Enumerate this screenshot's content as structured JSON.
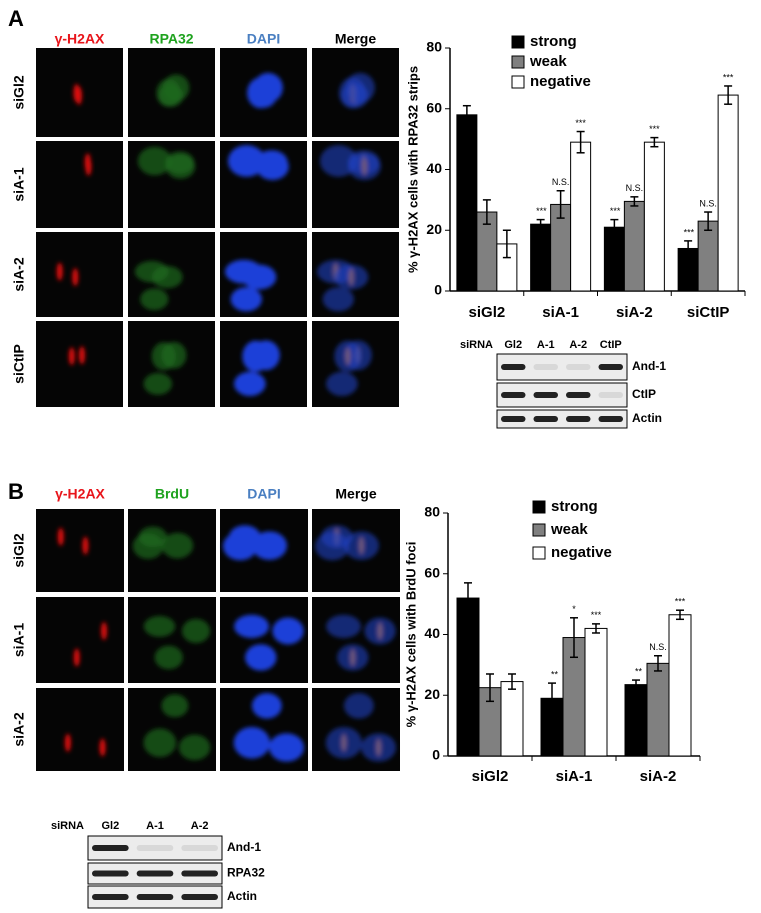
{
  "panels": [
    {
      "label": "A",
      "image_columns": [
        "γ-H2AX",
        "RPA32",
        "DAPI",
        "Merge"
      ],
      "image_rows": [
        "siGl2",
        "siA-1",
        "siA-2",
        "siCtIP"
      ],
      "blot": {
        "header": [
          "siRNA",
          "Gl2",
          "A-1",
          "A-2",
          "CtIP"
        ],
        "bands": [
          "And-1",
          "CtIP",
          "Actin"
        ]
      }
    },
    {
      "label": "B",
      "image_columns": [
        "γ-H2AX",
        "BrdU",
        "DAPI",
        "Merge"
      ],
      "image_rows": [
        "siGl2",
        "siA-1",
        "siA-2"
      ],
      "blot": {
        "header": [
          "siRNA",
          "Gl2",
          "A-1",
          "A-2"
        ],
        "bands": [
          "And-1",
          "RPA32",
          "Actin"
        ]
      }
    }
  ],
  "chart_data": [
    {
      "type": "bar",
      "y_label": "% γ-H2AX cells with RPA32 strips",
      "categories": [
        "siGl2",
        "siA-1",
        "siA-2",
        "siCtIP"
      ],
      "series": [
        {
          "name": "strong",
          "color": "#000000",
          "values": [
            58,
            22,
            21,
            14
          ],
          "errors": [
            3,
            1.5,
            2.5,
            2.5
          ],
          "annotations": [
            null,
            "***",
            "***",
            "***"
          ]
        },
        {
          "name": "weak",
          "color": "#808080",
          "values": [
            26,
            28.5,
            29.5,
            23
          ],
          "errors": [
            4,
            4.5,
            1.5,
            3
          ],
          "annotations": [
            null,
            "N.S.",
            "N.S.",
            "N.S."
          ]
        },
        {
          "name": "negative",
          "color": "#ffffff",
          "values": [
            15.5,
            49,
            49,
            64.5
          ],
          "errors": [
            4.5,
            3.5,
            1.5,
            3
          ],
          "annotations": [
            null,
            "***",
            "***",
            "***"
          ]
        }
      ],
      "ylim": [
        0,
        80
      ],
      "yticks": [
        0,
        20,
        40,
        60,
        80
      ]
    },
    {
      "type": "bar",
      "y_label": "% γ-H2AX cells with BrdU foci",
      "categories": [
        "siGl2",
        "siA-1",
        "siA-2"
      ],
      "series": [
        {
          "name": "strong",
          "color": "#000000",
          "values": [
            52,
            19,
            23.5
          ],
          "errors": [
            5,
            5,
            1.5
          ],
          "annotations": [
            null,
            "**",
            "**"
          ]
        },
        {
          "name": "weak",
          "color": "#808080",
          "values": [
            22.5,
            39,
            30.5
          ],
          "errors": [
            4.5,
            6.5,
            2.5
          ],
          "annotations": [
            null,
            "*",
            "N.S."
          ]
        },
        {
          "name": "negative",
          "color": "#ffffff",
          "values": [
            24.5,
            42,
            46.5
          ],
          "errors": [
            2.5,
            1.5,
            1.5
          ],
          "annotations": [
            null,
            "***",
            "***"
          ]
        }
      ],
      "ylim": [
        0,
        80
      ],
      "yticks": [
        0,
        20,
        40,
        60,
        80
      ]
    }
  ]
}
